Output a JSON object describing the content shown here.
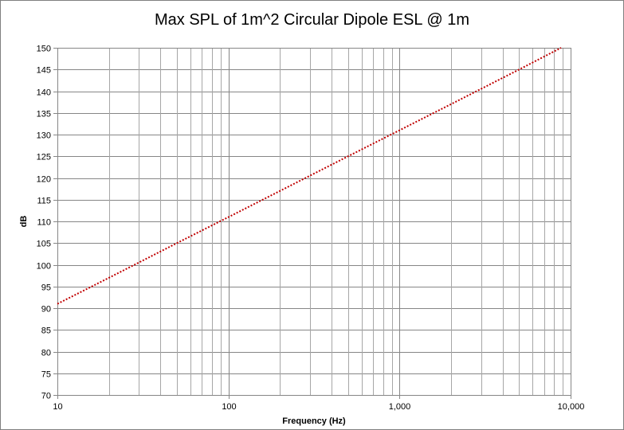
{
  "chart_data": {
    "type": "line",
    "title": "Max SPL of 1m^2 Circular Dipole ESL @ 1m",
    "xlabel": "Frequency (Hz)",
    "ylabel": "dB",
    "xscale": "log",
    "xlim": [
      10,
      10000
    ],
    "ylim": [
      70,
      150
    ],
    "ystep": 5,
    "x_ticks": [
      "10",
      "100",
      "1,000",
      "10,000"
    ],
    "y_ticks": [
      "70",
      "75",
      "80",
      "85",
      "90",
      "95",
      "100",
      "105",
      "110",
      "115",
      "120",
      "125",
      "130",
      "135",
      "140",
      "145",
      "150"
    ],
    "grid": true,
    "legend": "none",
    "line_color": "#c00000",
    "line_style": "dotted",
    "series": [
      {
        "x": [
          10,
          20,
          50,
          100,
          200,
          500,
          1000,
          2000,
          5000,
          8800
        ],
        "values": [
          91.0,
          97.0,
          105.0,
          111.0,
          117.0,
          125.0,
          131.0,
          137.0,
          145.0,
          150.0
        ]
      }
    ]
  }
}
